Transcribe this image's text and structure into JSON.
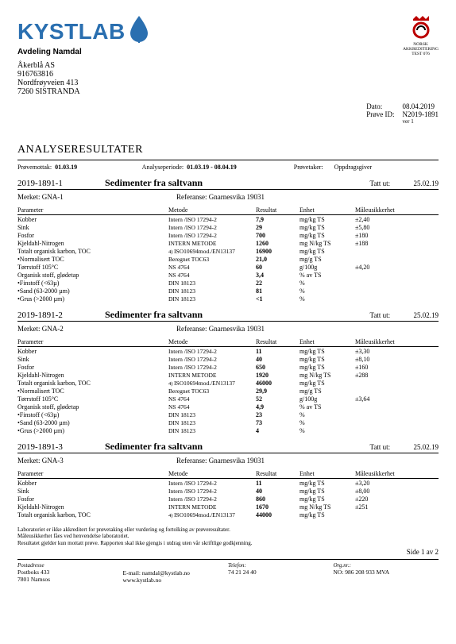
{
  "branding": {
    "company": "KYSTLAB",
    "logo_color": "#2a6fb0",
    "department": "Avdeling Namdal",
    "accred_line1": "NORSK",
    "accred_line2": "AKKREDITERING",
    "accred_line3": "TEST 076"
  },
  "recipient": {
    "name": "Åkerblå AS",
    "orgno": "916763816",
    "addr1": "Nordfrøyveien 413",
    "addr2": "7260  SISTRANDA"
  },
  "meta": {
    "date_label": "Dato:",
    "date_value": "08.04.2019",
    "sample_label": "Prøve ID:",
    "sample_value": "N2019-1891",
    "ver": "ver 1"
  },
  "title": "ANALYSERESULTATER",
  "header_row": {
    "mottatt_label": "Prøvemottak:",
    "mottatt_value": "01.03.19",
    "periode_label": "Analyseperiode:",
    "periode_value": "01.03.19 - 08.04.19",
    "taker_label": "Prøvetaker:",
    "giver_label": "Oppdragsgiver"
  },
  "col_headers": {
    "parameter": "Parameter",
    "metode": "Metode",
    "resultat": "Resultat",
    "enhet": "Enhet",
    "usikkerhet": "Måleusikkerhet"
  },
  "sample_common": {
    "title": "Sedimenter fra saltvann",
    "tatt_label": "Tatt ut:",
    "tatt_value": "25.02.19",
    "merket_prefix": "Merket:",
    "referanse_prefix": "Referanse:",
    "referanse_value": "Gnarnesvika 19031"
  },
  "samples": [
    {
      "id": "2019-1891-1",
      "merket": "GNA-1",
      "rows": [
        {
          "p": "Kobber",
          "m": "Intern /ISO 17294-2",
          "r": "7,9",
          "u": "mg/kg TS",
          "e": "±2,40"
        },
        {
          "p": "Sink",
          "m": "Intern /ISO 17294-2",
          "r": "29",
          "u": "mg/kg TS",
          "e": "±5,80"
        },
        {
          "p": "Fosfor",
          "m": "Intern /ISO 17294-2",
          "r": "700",
          "u": "mg/kg TS",
          "e": "±180"
        },
        {
          "p": "Kjeldahl-Nitrogen",
          "m": "INTERN METODE",
          "r": "1260",
          "u": "mg N/kg TS",
          "e": "±188"
        },
        {
          "p": "Totalt organisk karbon, TOC",
          "m": "ISO10694mod./EN13137",
          "r": "16900",
          "u": "mg/kg TS",
          "e": "",
          "note": "4)"
        },
        {
          "p": "•Normalisert TOC",
          "m": "Beregnet TOC63",
          "r": "21,0",
          "u": "mg/g TS",
          "e": ""
        },
        {
          "p": "Tørrstoff 105°C",
          "m": "NS 4764",
          "r": "60",
          "u": "g/100g",
          "e": "±4,20"
        },
        {
          "p": "Organisk stoff, glødetap",
          "m": "NS 4764",
          "r": "3,4",
          "u": "% av TS",
          "e": ""
        },
        {
          "p": "•Finstoff (<63µ)",
          "m": "DIN 18123",
          "r": "22",
          "u": "%",
          "e": ""
        },
        {
          "p": "•Sand (63-2000 µm)",
          "m": "DIN 18123",
          "r": "81",
          "u": "%",
          "e": ""
        },
        {
          "p": "•Grus (>2000 µm)",
          "m": "DIN 18123",
          "r": "<1",
          "u": "%",
          "e": ""
        }
      ]
    },
    {
      "id": "2019-1891-2",
      "merket": "GNA-2",
      "rows": [
        {
          "p": "Kobber",
          "m": "Intern /ISO 17294-2",
          "r": "11",
          "u": "mg/kg TS",
          "e": "±3,30"
        },
        {
          "p": "Sink",
          "m": "Intern /ISO 17294-2",
          "r": "40",
          "u": "mg/kg TS",
          "e": "±8,10"
        },
        {
          "p": "Fosfor",
          "m": "Intern /ISO 17294-2",
          "r": "650",
          "u": "mg/kg TS",
          "e": "±160"
        },
        {
          "p": "Kjeldahl-Nitrogen",
          "m": "INTERN METODE",
          "r": "1920",
          "u": "mg N/kg TS",
          "e": "±288"
        },
        {
          "p": "Totalt organisk karbon, TOC",
          "m": "ISO10694mod./EN13137",
          "r": "46000",
          "u": "mg/kg TS",
          "e": "",
          "note": "4)"
        },
        {
          "p": "•Normalisert TOC",
          "m": "Beregnet TOC63",
          "r": "29,9",
          "u": "mg/g TS",
          "e": ""
        },
        {
          "p": "Tørrstoff 105°C",
          "m": "NS 4764",
          "r": "52",
          "u": "g/100g",
          "e": "±3,64"
        },
        {
          "p": "Organisk stoff, glødetap",
          "m": "NS 4764",
          "r": "4,9",
          "u": "% av TS",
          "e": ""
        },
        {
          "p": "•Finstoff (<63µ)",
          "m": "DIN 18123",
          "r": "23",
          "u": "%",
          "e": ""
        },
        {
          "p": "•Sand (63-2000 µm)",
          "m": "DIN 18123",
          "r": "73",
          "u": "%",
          "e": ""
        },
        {
          "p": "•Grus (>2000 µm)",
          "m": "DIN 18123",
          "r": "4",
          "u": "%",
          "e": ""
        }
      ]
    },
    {
      "id": "2019-1891-3",
      "merket": "GNA-3",
      "rows": [
        {
          "p": "Kobber",
          "m": "Intern /ISO 17294-2",
          "r": "11",
          "u": "mg/kg TS",
          "e": "±3,20"
        },
        {
          "p": "Sink",
          "m": "Intern /ISO 17294-2",
          "r": "40",
          "u": "mg/kg TS",
          "e": "±8,00"
        },
        {
          "p": "Fosfor",
          "m": "Intern /ISO 17294-2",
          "r": "860",
          "u": "mg/kg TS",
          "e": "±220"
        },
        {
          "p": "Kjeldahl-Nitrogen",
          "m": "INTERN METODE",
          "r": "1670",
          "u": "mg N/kg TS",
          "e": "±251"
        },
        {
          "p": "Totalt organisk karbon, TOC",
          "m": "ISO10694mod./EN13137",
          "r": "44000",
          "u": "mg/kg TS",
          "e": "",
          "note": "4)"
        }
      ]
    }
  ],
  "footnotes": {
    "l1": "Laboratoriet er ikke akkreditert for prøvetaking eller vurdering og fortolking av prøveresultater.",
    "l2": "Måleusikkerhet fåes ved henvendelse laboratoriet.",
    "l3": "Resultatet gjelder kun mottatt prøve. Rapporten skal ikke gjengis i utdrag uten vår skriftlige godkjenning."
  },
  "pagenum": "Side 1 av 2",
  "footer": {
    "col1_h": "Postadresse",
    "col1_l1": "Postboks 433",
    "col1_l2": "7801  Namsos",
    "col2_l1": "E-mail: namdal@kystlab.no",
    "col2_l2": "www.kystlab.no",
    "col3_h": "Telefon:",
    "col3_l1": "74 21 24 40",
    "col4_h": "Org.nr.:",
    "col4_l1": "NO: 986 208 933 MVA"
  }
}
